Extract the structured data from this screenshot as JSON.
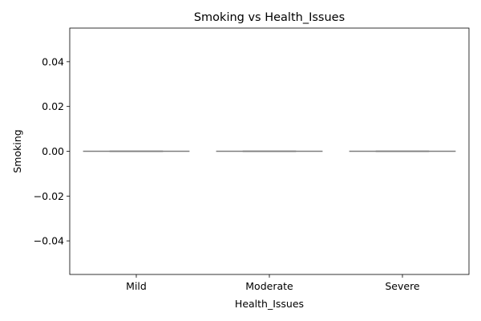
{
  "chart_data": {
    "type": "box",
    "title": "Smoking vs Health_Issues",
    "xlabel": "Health_Issues",
    "ylabel": "Smoking",
    "categories": [
      "Mild",
      "Moderate",
      "Severe"
    ],
    "boxes": [
      {
        "category": "Mild",
        "min": 0.0,
        "q1": 0.0,
        "median": 0.0,
        "q3": 0.0,
        "max": 0.0
      },
      {
        "category": "Moderate",
        "min": 0.0,
        "q1": 0.0,
        "median": 0.0,
        "q3": 0.0,
        "max": 0.0
      },
      {
        "category": "Severe",
        "min": 0.0,
        "q1": 0.0,
        "median": 0.0,
        "q3": 0.0,
        "max": 0.0
      }
    ],
    "ylim": [
      -0.055,
      0.055
    ],
    "yticks": [
      -0.04,
      -0.02,
      0.0,
      0.02,
      0.04
    ],
    "ytick_labels": [
      "−0.04",
      "−0.02",
      "0.00",
      "0.02",
      "0.04"
    ],
    "grid": false,
    "colors": {
      "box_line": "#7f7f7f",
      "frame": "#000000"
    }
  }
}
